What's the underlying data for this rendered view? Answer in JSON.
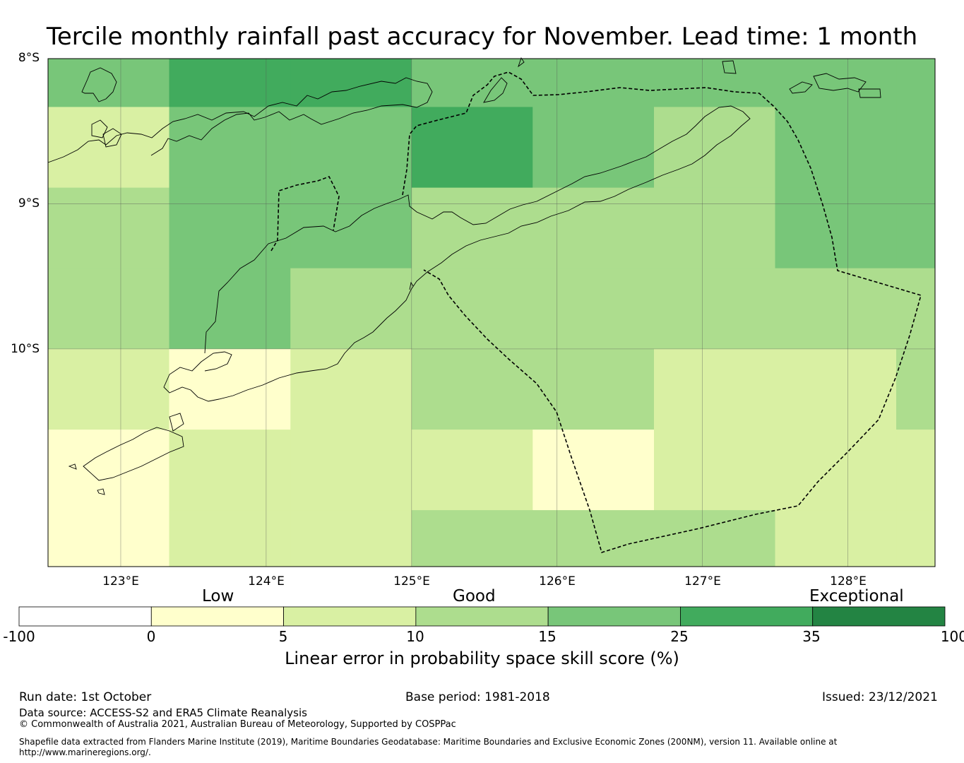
{
  "title": "Tercile monthly rainfall past accuracy for November. Lead time: 1 month",
  "map": {
    "lat_labels": [
      "8°S",
      "9°S",
      "10°S"
    ],
    "lon_labels": [
      "123°E",
      "124°E",
      "125°E",
      "126°E",
      "127°E",
      "128°E"
    ],
    "lon_extent": [
      122.5,
      128.6
    ],
    "lat_extent": [
      -8.0,
      -11.5
    ],
    "cell_edges_lon": [
      122.5,
      123.333,
      124.167,
      125.0,
      125.833,
      126.667,
      127.5,
      128.333,
      128.6
    ],
    "cell_edges_lat": [
      -8.0,
      -8.333,
      -8.889,
      -9.444,
      -10.0,
      -10.556,
      -11.111,
      -11.5
    ],
    "grid_values": [
      [
        15,
        25,
        25,
        15,
        15,
        15,
        15,
        15
      ],
      [
        5,
        15,
        15,
        25,
        15,
        10,
        15,
        15
      ],
      [
        10,
        15,
        15,
        10,
        10,
        10,
        15,
        15
      ],
      [
        10,
        15,
        10,
        10,
        10,
        10,
        10,
        10
      ],
      [
        5,
        0,
        5,
        10,
        10,
        5,
        5,
        10
      ],
      [
        0,
        5,
        5,
        5,
        0,
        5,
        5,
        5
      ],
      [
        0,
        5,
        5,
        10,
        10,
        10,
        5,
        5
      ]
    ]
  },
  "colorbar": {
    "categories": [
      "Low",
      "Good",
      "Exceptional"
    ],
    "ticks": [
      "-100",
      "0",
      "5",
      "10",
      "15",
      "25",
      "35",
      "100"
    ],
    "colors": [
      "#ffffff",
      "#ffffcc",
      "#d9f0a3",
      "#addd8e",
      "#78c679",
      "#41ab5d",
      "#238443"
    ],
    "label": "Linear error in probability space skill score (%)"
  },
  "footer": {
    "run_date": "Run date: 1st October",
    "base_period": "Base period: 1981-2018",
    "issued": "Issued: 23/12/2021",
    "data_source": "Data source: ACCESS-S2 and ERA5 Climate Reanalysis",
    "copyright": "© Commonwealth of Australia 2021, Australian Bureau of Meteorology, Supported by COSPPac",
    "shapefile": "Shapefile data extracted from Flanders Marine Institute (2019), Maritime Boundaries Geodatabase: Maritime Boundaries and Exclusive Economic Zones (200NM), version 11. Available online at http://www.marineregions.org/."
  }
}
